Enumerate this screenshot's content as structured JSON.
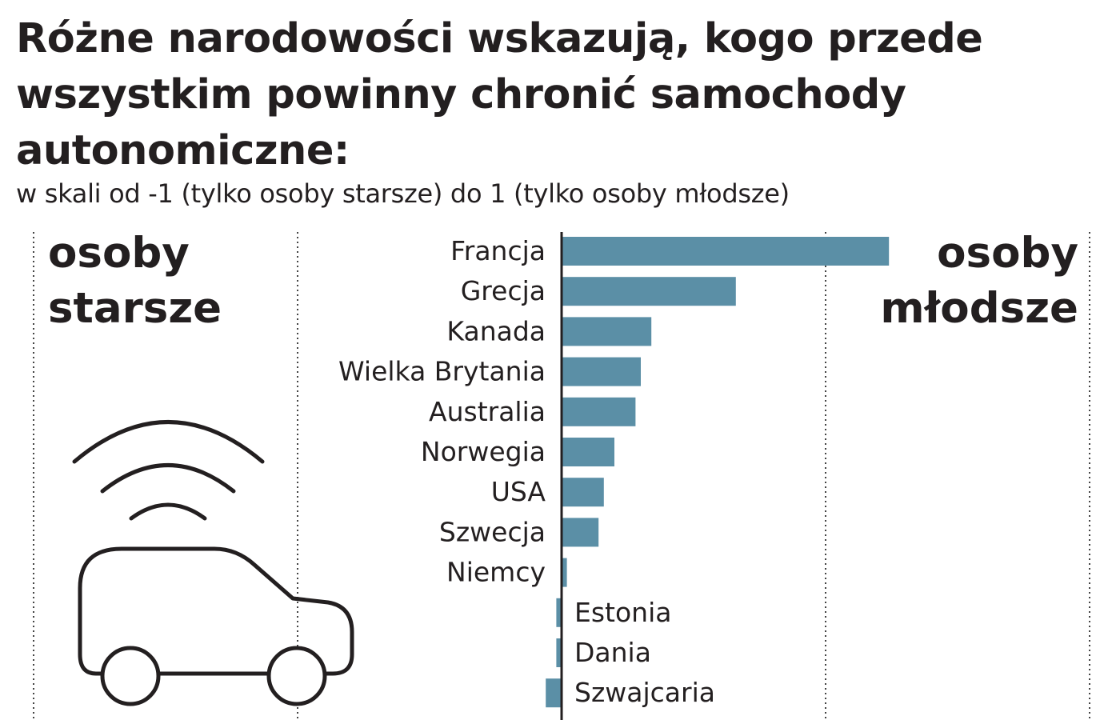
{
  "header": {
    "title": "Różne narodowości wskazują, kogo przede wszystkim powinny chronić samochody autonomiczne:",
    "subtitle": "w skali od -1 (tylko osoby starsze) do 1 (tylko osoby młodsze)"
  },
  "sides": {
    "left_line1": "osoby",
    "left_line2": "starsze",
    "right_line1": "osoby",
    "right_line2": "młodsze"
  },
  "illustration": {
    "icon": "autonomous-car-icon"
  },
  "colors": {
    "bar": "#5b8fa6",
    "text": "#231f20",
    "axis": "#231f20",
    "grid": "#444444"
  },
  "chart_data": {
    "type": "bar",
    "orientation": "horizontal",
    "xlim": [
      -1,
      1
    ],
    "grid": "vertical dotted lines",
    "categories": [
      "Francja",
      "Grecja",
      "Kanada",
      "Wielka Brytania",
      "Australia",
      "Norwegia",
      "USA",
      "Szwecja",
      "Niemcy",
      "Estonia",
      "Dania",
      "Szwajcaria"
    ],
    "values": [
      0.62,
      0.33,
      0.17,
      0.15,
      0.14,
      0.1,
      0.08,
      0.07,
      0.01,
      -0.01,
      -0.01,
      -0.03
    ]
  }
}
